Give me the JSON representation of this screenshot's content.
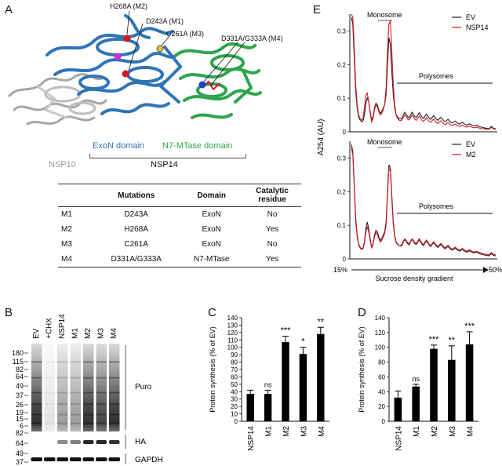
{
  "panels": {
    "a": "A",
    "b": "B",
    "c": "C",
    "d": "D",
    "e": "E"
  },
  "panel_a": {
    "mutation_labels": [
      {
        "text": "H268A (M2)"
      },
      {
        "text": "D243A (M1)"
      },
      {
        "text": "C261A (M3)"
      },
      {
        "text": "D331A/G333A (M4)"
      }
    ],
    "domains": {
      "exon": "ExoN domain",
      "mtase": "N7-MTase domain",
      "nsp10": "NSP10",
      "nsp14": "NSP14"
    },
    "colors": {
      "exon": "#2f74b5",
      "mtase": "#2ea44f",
      "nsp10": "#9a9a9a",
      "mutation_dot": "#d6181f"
    },
    "table": {
      "headers": [
        "",
        "Mutations",
        "Domain",
        "Catalytic residue"
      ],
      "rows": [
        {
          "id": "M1",
          "mutation": "D243A",
          "domain": "ExoN",
          "catalytic": "No"
        },
        {
          "id": "M2",
          "mutation": "H268A",
          "domain": "ExoN",
          "catalytic": "Yes"
        },
        {
          "id": "M3",
          "mutation": "C261A",
          "domain": "ExoN",
          "catalytic": "No"
        },
        {
          "id": "M4",
          "mutation": "D331A/G333A",
          "domain": "N7-MTase",
          "catalytic": "Yes"
        }
      ]
    }
  },
  "panel_b": {
    "lanes": [
      "EV",
      "+CHX",
      "NSP14",
      "M1",
      "M2",
      "M3",
      "M4"
    ],
    "puro_markers": [
      "180",
      "115",
      "82",
      "64",
      "49",
      "37",
      "26",
      "19",
      "15",
      "6"
    ],
    "ha_markers": [
      "82",
      "64"
    ],
    "gapdh_markers": [
      "49",
      "37"
    ],
    "blot_labels": {
      "puro": "Puro",
      "ha": "HA",
      "gapdh": "GAPDH"
    },
    "puro_intensity": [
      0.95,
      0.12,
      0.45,
      0.45,
      0.95,
      0.85,
      0.95
    ],
    "ha_intensity": [
      0,
      0,
      0.45,
      0.5,
      0.85,
      0.85,
      0.8
    ]
  },
  "chart_data": [
    {
      "type": "bar",
      "panel": "C",
      "categories": [
        "NSP14",
        "M1",
        "M2",
        "M3",
        "M4"
      ],
      "values": [
        37,
        37,
        107,
        91,
        118
      ],
      "errors": [
        5,
        5,
        8,
        9,
        9
      ],
      "significance": [
        "",
        "ns",
        "***",
        "*",
        "**"
      ],
      "ylabel": "Protein synthesis  (% of EV)",
      "ylim": [
        0,
        140
      ],
      "yticks": [
        "0",
        "10",
        "20",
        "30",
        "40",
        "50",
        "60",
        "70",
        "80",
        "90",
        "100",
        "110",
        "120",
        "130",
        "140"
      ]
    },
    {
      "type": "bar",
      "panel": "D",
      "categories": [
        "NSP14",
        "M1",
        "M2",
        "M3",
        "M4"
      ],
      "values": [
        32,
        47,
        98,
        83,
        104
      ],
      "errors": [
        9,
        3,
        5,
        19,
        17
      ],
      "significance": [
        "",
        "ns",
        "***",
        "**",
        "***"
      ],
      "ylabel": "Protein synthesis  (% of EV)",
      "ylim": [
        0,
        140
      ],
      "yticks": [
        "0",
        "20",
        "40",
        "60",
        "80",
        "100",
        "120",
        "140"
      ]
    },
    {
      "type": "line",
      "panel": "E-top",
      "ylabel": "A254 (AU)",
      "ylim": [
        0,
        0.35
      ],
      "yticks": [
        "0",
        "0.1",
        "0.2",
        "0.3"
      ],
      "annotations": {
        "monosome": "Monosome",
        "polysomes": "Polysomes"
      },
      "series": [
        {
          "name": "EV",
          "color": "#222222",
          "values": [
            0.34,
            0.32,
            0.22,
            0.12,
            0.07,
            0.045,
            0.035,
            0.03,
            0.032,
            0.05,
            0.085,
            0.1,
            0.09,
            0.06,
            0.035,
            0.045,
            0.07,
            0.085,
            0.08,
            0.065,
            0.055,
            0.06,
            0.07,
            0.08,
            0.11,
            0.2,
            0.28,
            0.26,
            0.18,
            0.11,
            0.07,
            0.05,
            0.045,
            0.04,
            0.038,
            0.04,
            0.05,
            0.058,
            0.052,
            0.045,
            0.042,
            0.05,
            0.058,
            0.052,
            0.045,
            0.043,
            0.05,
            0.057,
            0.05,
            0.043,
            0.04,
            0.047,
            0.053,
            0.047,
            0.04,
            0.037,
            0.043,
            0.048,
            0.043,
            0.037,
            0.034,
            0.039,
            0.043,
            0.038,
            0.033,
            0.03,
            0.034,
            0.037,
            0.032,
            0.028,
            0.026,
            0.029,
            0.032,
            0.028,
            0.025,
            0.023,
            0.026,
            0.028,
            0.024,
            0.022,
            0.02,
            0.022,
            0.024,
            0.021,
            0.019,
            0.017,
            0.019,
            0.02,
            0.017,
            0.015,
            0.014,
            0.013,
            0.012,
            0.011,
            0.01,
            0.009,
            0.012,
            0.016,
            0.012,
            0.01,
            0.009
          ]
        },
        {
          "name": "NSP14",
          "color": "#d6181f",
          "values": [
            0.35,
            0.34,
            0.25,
            0.14,
            0.08,
            0.05,
            0.04,
            0.035,
            0.04,
            0.07,
            0.11,
            0.115,
            0.09,
            0.055,
            0.03,
            0.04,
            0.065,
            0.08,
            0.075,
            0.06,
            0.05,
            0.055,
            0.065,
            0.08,
            0.13,
            0.24,
            0.32,
            0.33,
            0.24,
            0.14,
            0.08,
            0.05,
            0.04,
            0.035,
            0.033,
            0.035,
            0.043,
            0.05,
            0.045,
            0.038,
            0.035,
            0.042,
            0.05,
            0.044,
            0.037,
            0.034,
            0.04,
            0.047,
            0.04,
            0.034,
            0.031,
            0.036,
            0.042,
            0.036,
            0.03,
            0.028,
            0.033,
            0.038,
            0.032,
            0.027,
            0.025,
            0.029,
            0.033,
            0.028,
            0.024,
            0.022,
            0.025,
            0.028,
            0.023,
            0.02,
            0.019,
            0.021,
            0.023,
            0.02,
            0.018,
            0.016,
            0.018,
            0.02,
            0.017,
            0.015,
            0.014,
            0.016,
            0.017,
            0.015,
            0.013,
            0.012,
            0.013,
            0.014,
            0.012,
            0.011,
            0.01,
            0.009,
            0.009,
            0.008,
            0.008,
            0.007,
            0.01,
            0.013,
            0.01,
            0.008,
            0.007
          ]
        }
      ]
    },
    {
      "type": "line",
      "panel": "E-bottom",
      "ylabel": "A254 (AU)",
      "ylim": [
        0,
        0.35
      ],
      "yticks": [
        "0",
        "0.1",
        "0.2",
        "0.3"
      ],
      "xlabel": "Sucrose density gradient",
      "xrange_labels": [
        "15%",
        "50%"
      ],
      "annotations": {
        "monosome": "Monosome",
        "polysomes": "Polysomes"
      },
      "series": [
        {
          "name": "EV",
          "color": "#222222",
          "values": [
            0.34,
            0.32,
            0.22,
            0.12,
            0.07,
            0.045,
            0.035,
            0.03,
            0.032,
            0.05,
            0.09,
            0.11,
            0.09,
            0.06,
            0.035,
            0.045,
            0.07,
            0.085,
            0.08,
            0.065,
            0.055,
            0.06,
            0.07,
            0.08,
            0.11,
            0.2,
            0.28,
            0.27,
            0.19,
            0.11,
            0.07,
            0.05,
            0.045,
            0.04,
            0.038,
            0.04,
            0.05,
            0.058,
            0.052,
            0.045,
            0.042,
            0.05,
            0.058,
            0.052,
            0.045,
            0.043,
            0.05,
            0.057,
            0.05,
            0.043,
            0.04,
            0.047,
            0.053,
            0.047,
            0.04,
            0.037,
            0.043,
            0.048,
            0.043,
            0.037,
            0.034,
            0.039,
            0.043,
            0.038,
            0.033,
            0.03,
            0.034,
            0.037,
            0.032,
            0.028,
            0.026,
            0.029,
            0.032,
            0.028,
            0.025,
            0.023,
            0.026,
            0.028,
            0.024,
            0.022,
            0.02,
            0.022,
            0.024,
            0.021,
            0.019,
            0.017,
            0.019,
            0.02,
            0.017,
            0.015,
            0.014,
            0.013,
            0.012,
            0.011,
            0.01,
            0.009,
            0.012,
            0.016,
            0.012,
            0.01,
            0.009
          ]
        },
        {
          "name": "M2",
          "color": "#d6181f",
          "values": [
            0.33,
            0.31,
            0.21,
            0.11,
            0.065,
            0.042,
            0.033,
            0.028,
            0.03,
            0.045,
            0.08,
            0.095,
            0.08,
            0.055,
            0.033,
            0.042,
            0.065,
            0.078,
            0.073,
            0.06,
            0.05,
            0.055,
            0.065,
            0.075,
            0.1,
            0.19,
            0.27,
            0.26,
            0.18,
            0.1,
            0.065,
            0.048,
            0.043,
            0.04,
            0.04,
            0.043,
            0.053,
            0.06,
            0.055,
            0.048,
            0.045,
            0.052,
            0.06,
            0.055,
            0.048,
            0.046,
            0.053,
            0.06,
            0.053,
            0.046,
            0.043,
            0.05,
            0.056,
            0.05,
            0.043,
            0.04,
            0.046,
            0.051,
            0.046,
            0.04,
            0.037,
            0.042,
            0.046,
            0.041,
            0.036,
            0.033,
            0.037,
            0.04,
            0.035,
            0.031,
            0.029,
            0.032,
            0.035,
            0.031,
            0.028,
            0.026,
            0.029,
            0.031,
            0.027,
            0.025,
            0.023,
            0.025,
            0.027,
            0.024,
            0.022,
            0.02,
            0.022,
            0.023,
            0.02,
            0.018,
            0.017,
            0.016,
            0.015,
            0.014,
            0.013,
            0.012,
            0.015,
            0.019,
            0.015,
            0.013,
            0.012
          ]
        }
      ]
    }
  ]
}
